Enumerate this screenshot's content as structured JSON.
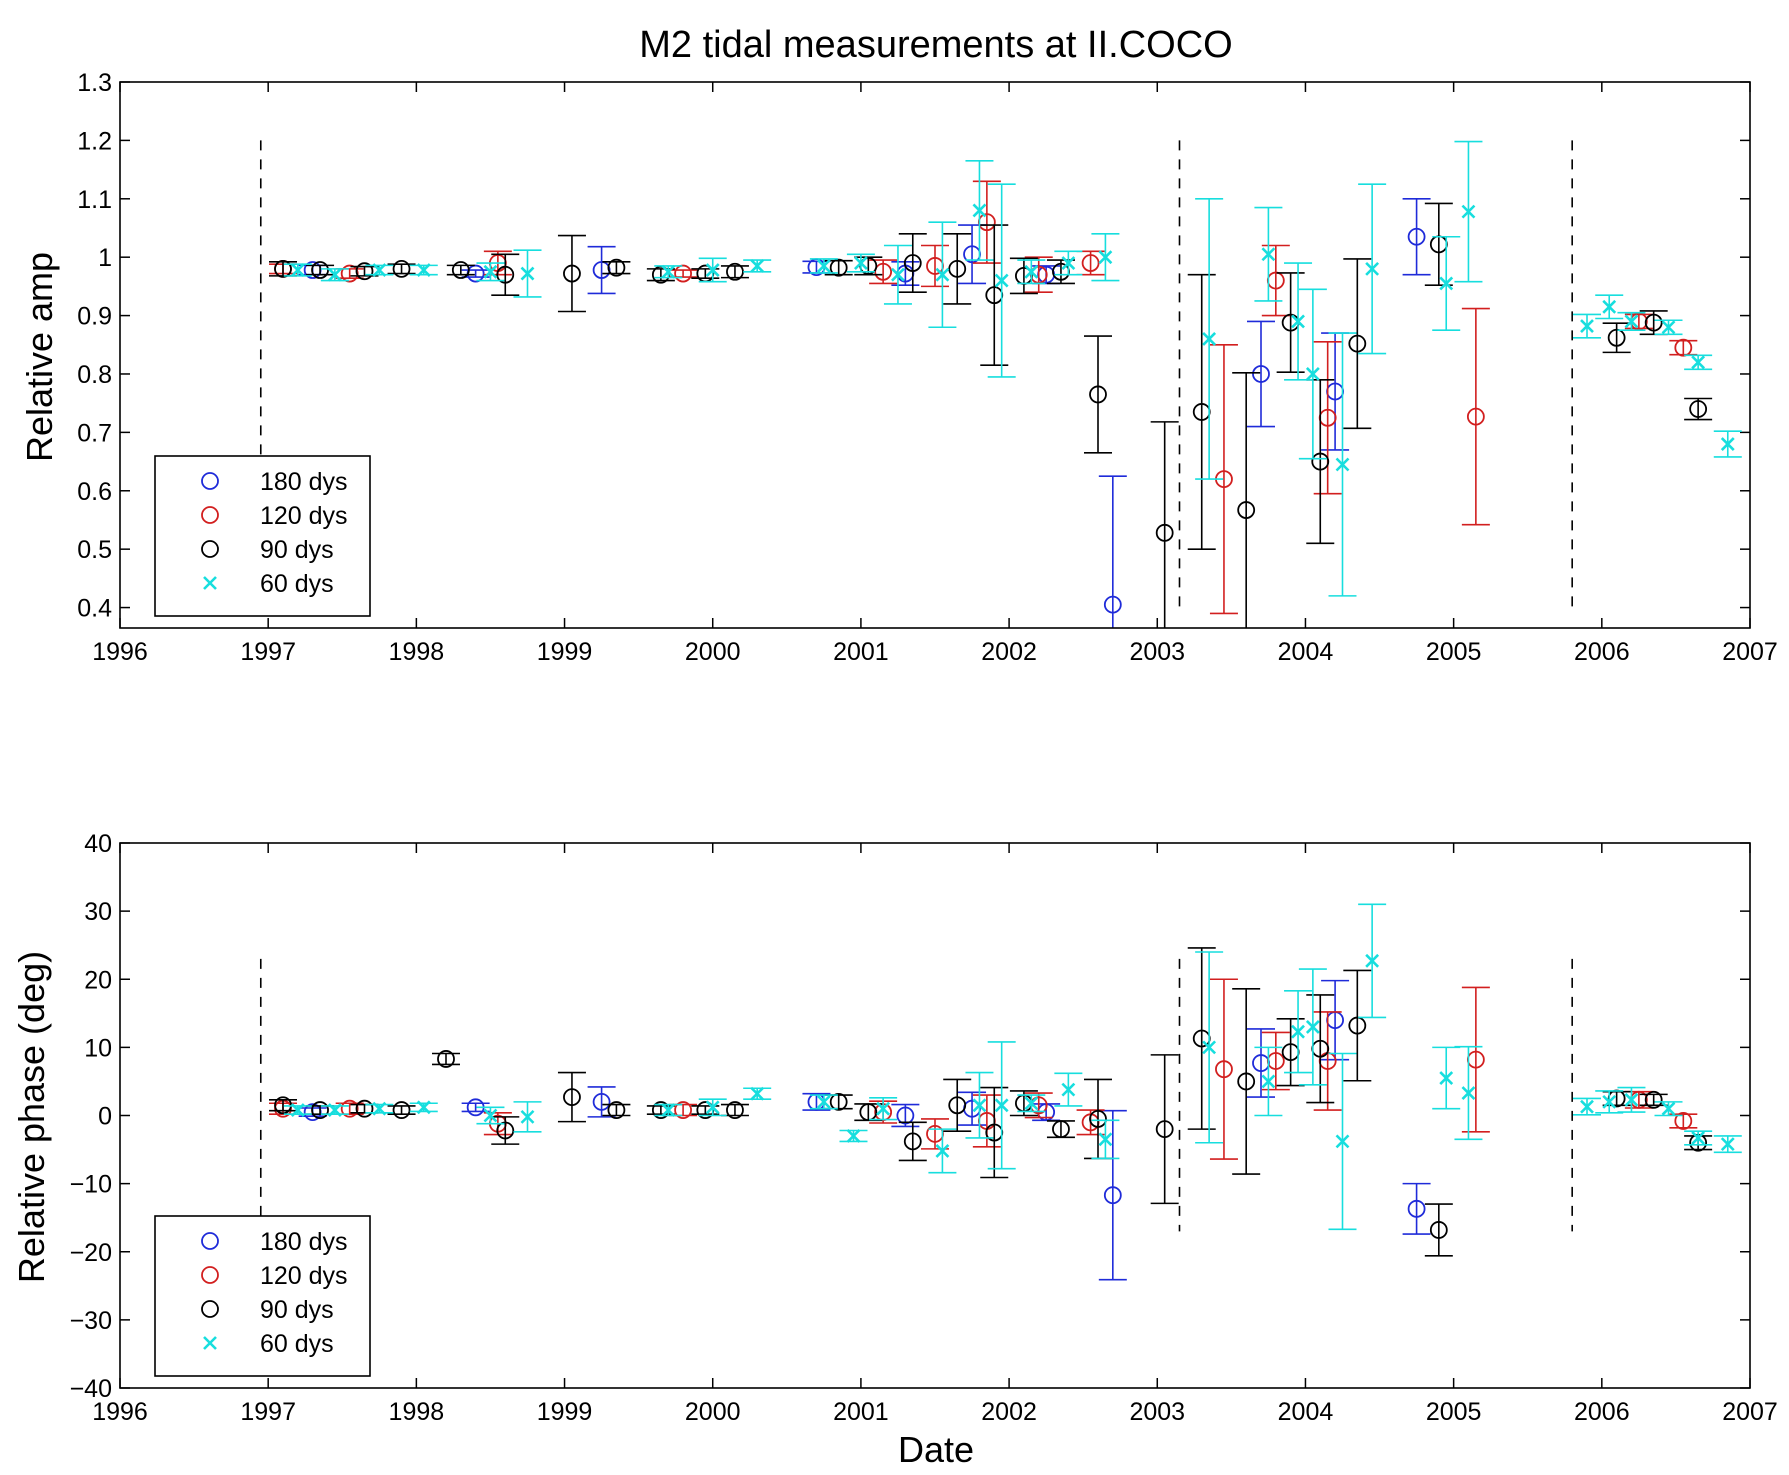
{
  "figure": {
    "title": "M2 tidal measurements at II.COCO",
    "colors": {
      "180 dys": "#1f2bd9",
      "120 dys": "#d21f1f",
      "90 dys": "#000000",
      "60 dys": "#17dede"
    }
  },
  "chart_data": [
    {
      "type": "scatter",
      "title": "M2 tidal measurements at II.COCO",
      "xlabel": "",
      "ylabel": "Relative amp",
      "xlim": [
        1996,
        2007
      ],
      "ylim": [
        0.365,
        1.3
      ],
      "xticks": [
        "1996",
        "1997",
        "1998",
        "1999",
        "2000",
        "2001",
        "2002",
        "2003",
        "2004",
        "2005",
        "2006",
        "2007"
      ],
      "yticks": [
        "0.4",
        "0.5",
        "0.6",
        "0.7",
        "0.8",
        "0.9",
        "1",
        "1.1",
        "1.2",
        "1.3"
      ],
      "legend_position": "bottom-left",
      "grid": false,
      "vlines": [
        1996.95,
        2003.15,
        2005.8
      ],
      "series": [
        {
          "name": "180 dys",
          "marker": "circle",
          "color": "#1f2bd9",
          "points": [
            [
              1997.3,
              0.978,
              0.008
            ],
            [
              1998.4,
              0.972,
              0.006
            ],
            [
              1999.25,
              0.978,
              0.04
            ],
            [
              2000.7,
              0.983,
              0.01
            ],
            [
              2001.3,
              0.972,
              0.02
            ],
            [
              2001.75,
              1.005,
              0.05
            ],
            [
              2002.25,
              0.97,
              0.015
            ],
            [
              2002.7,
              0.405,
              0.22
            ],
            [
              2003.7,
              0.8,
              0.09
            ],
            [
              2004.2,
              0.77,
              0.1
            ],
            [
              2004.75,
              1.035,
              0.065
            ]
          ]
        },
        {
          "name": "120 dys",
          "marker": "circle",
          "color": "#d21f1f",
          "points": [
            [
              1997.1,
              0.98,
              0.008
            ],
            [
              1997.55,
              0.972,
              0.008
            ],
            [
              1998.55,
              0.99,
              0.02
            ],
            [
              1999.8,
              0.972,
              0.006
            ],
            [
              2001.15,
              0.975,
              0.02
            ],
            [
              2001.5,
              0.985,
              0.035
            ],
            [
              2001.85,
              1.06,
              0.07
            ],
            [
              2002.2,
              0.97,
              0.03
            ],
            [
              2002.55,
              0.99,
              0.02
            ],
            [
              2003.45,
              0.62,
              0.23
            ],
            [
              2003.8,
              0.96,
              0.06
            ],
            [
              2004.15,
              0.725,
              0.13
            ],
            [
              2005.15,
              0.727,
              0.185
            ],
            [
              2006.25,
              0.89,
              0.012
            ],
            [
              2006.55,
              0.845,
              0.012
            ]
          ]
        },
        {
          "name": "90 dys",
          "marker": "circle",
          "color": "#000000",
          "points": [
            [
              1997.1,
              0.98,
              0.012
            ],
            [
              1997.35,
              0.978,
              0.008
            ],
            [
              1997.65,
              0.976,
              0.008
            ],
            [
              1997.9,
              0.98,
              0.008
            ],
            [
              1998.3,
              0.978,
              0.008
            ],
            [
              1998.6,
              0.97,
              0.035
            ],
            [
              1999.05,
              0.972,
              0.065
            ],
            [
              1999.35,
              0.982,
              0.01
            ],
            [
              1999.65,
              0.97,
              0.01
            ],
            [
              1999.95,
              0.972,
              0.008
            ],
            [
              2000.15,
              0.975,
              0.01
            ],
            [
              2000.85,
              0.982,
              0.012
            ],
            [
              2001.05,
              0.985,
              0.015
            ],
            [
              2001.35,
              0.99,
              0.05
            ],
            [
              2001.65,
              0.98,
              0.06
            ],
            [
              2001.9,
              0.935,
              0.12
            ],
            [
              2002.1,
              0.968,
              0.03
            ],
            [
              2002.35,
              0.975,
              0.02
            ],
            [
              2002.6,
              0.765,
              0.1
            ],
            [
              2003.05,
              0.528,
              0.19
            ],
            [
              2003.3,
              0.735,
              0.235
            ],
            [
              2003.6,
              0.567,
              0.235
            ],
            [
              2003.9,
              0.888,
              0.085
            ],
            [
              2004.1,
              0.65,
              0.14
            ],
            [
              2004.35,
              0.852,
              0.145
            ],
            [
              2004.9,
              1.022,
              0.07
            ],
            [
              2006.1,
              0.862,
              0.025
            ],
            [
              2006.35,
              0.888,
              0.02
            ],
            [
              2006.65,
              0.74,
              0.018
            ]
          ]
        },
        {
          "name": "60 dys",
          "marker": "x",
          "color": "#17dede",
          "points": [
            [
              1997.2,
              0.978,
              0.01
            ],
            [
              1997.45,
              0.97,
              0.01
            ],
            [
              1997.75,
              0.978,
              0.008
            ],
            [
              1998.05,
              0.978,
              0.008
            ],
            [
              1998.5,
              0.975,
              0.015
            ],
            [
              1998.75,
              0.972,
              0.04
            ],
            [
              1999.7,
              0.975,
              0.01
            ],
            [
              2000.0,
              0.978,
              0.02
            ],
            [
              2000.3,
              0.985,
              0.01
            ],
            [
              2000.75,
              0.985,
              0.012
            ],
            [
              2001.0,
              0.99,
              0.015
            ],
            [
              2001.25,
              0.97,
              0.05
            ],
            [
              2001.55,
              0.97,
              0.09
            ],
            [
              2001.8,
              1.08,
              0.085
            ],
            [
              2001.95,
              0.96,
              0.165
            ],
            [
              2002.15,
              0.975,
              0.02
            ],
            [
              2002.4,
              0.99,
              0.02
            ],
            [
              2002.65,
              1.0,
              0.04
            ],
            [
              2003.35,
              0.86,
              0.24
            ],
            [
              2003.75,
              1.005,
              0.08
            ],
            [
              2003.95,
              0.89,
              0.1
            ],
            [
              2004.05,
              0.8,
              0.145
            ],
            [
              2004.25,
              0.645,
              0.225
            ],
            [
              2004.45,
              0.98,
              0.145
            ],
            [
              2004.95,
              0.955,
              0.08
            ],
            [
              2005.1,
              1.078,
              0.12
            ],
            [
              2005.9,
              0.882,
              0.02
            ],
            [
              2006.05,
              0.915,
              0.02
            ],
            [
              2006.2,
              0.89,
              0.015
            ],
            [
              2006.45,
              0.88,
              0.012
            ],
            [
              2006.65,
              0.82,
              0.012
            ],
            [
              2006.85,
              0.68,
              0.022
            ]
          ]
        }
      ]
    },
    {
      "type": "scatter",
      "title": "",
      "xlabel": "Date",
      "ylabel": "Relative phase (deg)",
      "xlim": [
        1996,
        2007
      ],
      "ylim": [
        -40,
        40
      ],
      "xticks": [
        "1996",
        "1997",
        "1998",
        "1999",
        "2000",
        "2001",
        "2002",
        "2003",
        "2004",
        "2005",
        "2006",
        "2007"
      ],
      "yticks": [
        "−40",
        "−30",
        "−20",
        "−10",
        "0",
        "10",
        "20",
        "30",
        "40"
      ],
      "legend_position": "bottom-left",
      "grid": false,
      "vlines": [
        1996.95,
        2003.15,
        2005.8
      ],
      "series": [
        {
          "name": "180 dys",
          "marker": "circle",
          "color": "#1f2bd9",
          "points": [
            [
              1997.3,
              0.5,
              0.6
            ],
            [
              1998.4,
              1.2,
              0.6
            ],
            [
              1999.25,
              2.0,
              2.2
            ],
            [
              2000.7,
              2.0,
              1.2
            ],
            [
              2001.3,
              0.0,
              1.6
            ],
            [
              2001.75,
              1.0,
              2.4
            ],
            [
              2002.25,
              0.5,
              1.2
            ],
            [
              2002.7,
              -11.7,
              12.4
            ],
            [
              2003.7,
              7.7,
              5.0
            ],
            [
              2004.2,
              14.0,
              5.8
            ],
            [
              2004.75,
              -13.7,
              3.7
            ]
          ]
        },
        {
          "name": "120 dys",
          "marker": "circle",
          "color": "#d21f1f",
          "points": [
            [
              1997.1,
              1.0,
              0.8
            ],
            [
              1997.55,
              1.0,
              0.8
            ],
            [
              1998.55,
              -1.2,
              1.6
            ],
            [
              1999.8,
              0.8,
              0.8
            ],
            [
              2001.15,
              0.5,
              1.6
            ],
            [
              2001.5,
              -2.7,
              2.2
            ],
            [
              2001.85,
              -0.8,
              3.8
            ],
            [
              2002.2,
              1.5,
              1.8
            ],
            [
              2002.55,
              -1.0,
              1.8
            ],
            [
              2003.45,
              6.8,
              13.2
            ],
            [
              2003.8,
              8.0,
              4.2
            ],
            [
              2004.15,
              8.0,
              7.2
            ],
            [
              2005.15,
              8.2,
              10.6
            ],
            [
              2006.25,
              2.3,
              1.2
            ],
            [
              2006.55,
              -0.8,
              1.0
            ]
          ]
        },
        {
          "name": "90 dys",
          "marker": "circle",
          "color": "#000000",
          "points": [
            [
              1997.1,
              1.5,
              0.8
            ],
            [
              1997.35,
              0.8,
              0.6
            ],
            [
              1997.65,
              1.0,
              0.6
            ],
            [
              1997.9,
              0.8,
              0.6
            ],
            [
              1998.2,
              8.3,
              0.8
            ],
            [
              1998.6,
              -2.2,
              2.0
            ],
            [
              1999.05,
              2.7,
              3.6
            ],
            [
              1999.35,
              0.8,
              0.8
            ],
            [
              1999.65,
              0.8,
              0.6
            ],
            [
              1999.95,
              0.8,
              0.6
            ],
            [
              2000.15,
              0.8,
              0.8
            ],
            [
              2000.85,
              2.0,
              1.0
            ],
            [
              2001.05,
              0.5,
              1.2
            ],
            [
              2001.35,
              -3.8,
              2.8
            ],
            [
              2001.65,
              1.5,
              3.8
            ],
            [
              2001.9,
              -2.5,
              6.6
            ],
            [
              2002.1,
              1.8,
              1.8
            ],
            [
              2002.35,
              -2.0,
              1.2
            ],
            [
              2002.6,
              -0.5,
              5.8
            ],
            [
              2003.05,
              -2.0,
              10.9
            ],
            [
              2003.3,
              11.3,
              13.3
            ],
            [
              2003.6,
              5.0,
              13.6
            ],
            [
              2003.9,
              9.3,
              4.9
            ],
            [
              2004.1,
              9.8,
              7.9
            ],
            [
              2004.35,
              13.2,
              8.1
            ],
            [
              2004.9,
              -16.8,
              3.8
            ],
            [
              2006.1,
              2.5,
              1.0
            ],
            [
              2006.35,
              2.3,
              0.8
            ],
            [
              2006.65,
              -4.0,
              1.0
            ]
          ]
        },
        {
          "name": "60 dys",
          "marker": "x",
          "color": "#17dede",
          "points": [
            [
              1997.2,
              0.8,
              0.6
            ],
            [
              1997.45,
              0.8,
              0.6
            ],
            [
              1997.75,
              1.0,
              0.6
            ],
            [
              1998.05,
              1.2,
              0.6
            ],
            [
              1998.5,
              0.0,
              1.2
            ],
            [
              1998.75,
              -0.2,
              2.2
            ],
            [
              1999.7,
              0.8,
              0.8
            ],
            [
              2000.0,
              1.2,
              1.2
            ],
            [
              2000.3,
              3.2,
              0.8
            ],
            [
              2000.75,
              2.0,
              1.0
            ],
            [
              2000.95,
              -3.0,
              0.8
            ],
            [
              2001.15,
              1.0,
              1.6
            ],
            [
              2001.55,
              -5.2,
              3.2
            ],
            [
              2001.8,
              1.5,
              4.8
            ],
            [
              2001.95,
              1.5,
              9.3
            ],
            [
              2002.15,
              1.8,
              1.2
            ],
            [
              2002.4,
              3.8,
              2.4
            ],
            [
              2002.65,
              -3.5,
              2.8
            ],
            [
              2003.35,
              10.0,
              14.0
            ],
            [
              2003.75,
              5.0,
              5.0
            ],
            [
              2003.95,
              12.3,
              6.0
            ],
            [
              2004.05,
              13.0,
              8.5
            ],
            [
              2004.25,
              -3.8,
              12.9
            ],
            [
              2004.45,
              22.7,
              8.3
            ],
            [
              2004.95,
              5.5,
              4.5
            ],
            [
              2005.1,
              3.3,
              6.8
            ],
            [
              2005.9,
              1.3,
              1.2
            ],
            [
              2006.05,
              2.0,
              1.6
            ],
            [
              2006.2,
              2.3,
              1.8
            ],
            [
              2006.45,
              1.0,
              1.0
            ],
            [
              2006.65,
              -3.3,
              1.0
            ],
            [
              2006.85,
              -4.2,
              1.2
            ]
          ]
        }
      ]
    }
  ]
}
